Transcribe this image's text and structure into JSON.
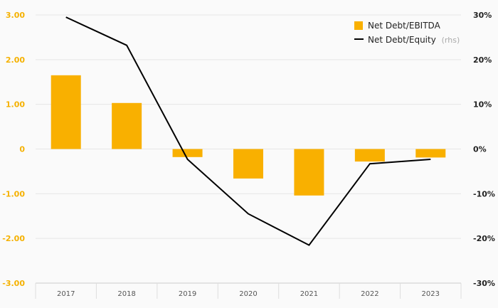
{
  "chart_data": {
    "type": "bar",
    "categories": [
      "2017",
      "2018",
      "2019",
      "2020",
      "2021",
      "2022",
      "2023"
    ],
    "series": [
      {
        "name": "Net Debt/EBITDA",
        "type": "bar",
        "axis": "left",
        "color": "#f9b000",
        "values": [
          1.65,
          1.03,
          -0.18,
          -0.66,
          -1.04,
          -0.28,
          -0.19
        ]
      },
      {
        "name": "Net Debt/Equity",
        "legend_suffix": "(rhs)",
        "type": "line",
        "axis": "right",
        "color": "#000000",
        "values": [
          29.5,
          23.2,
          -2.3,
          -14.5,
          -21.5,
          -3.3,
          -2.3
        ]
      }
    ],
    "left_axis": {
      "ylim": [
        -3,
        3
      ],
      "ticks": [
        3,
        2,
        1,
        0,
        -1,
        -2,
        -3
      ],
      "tick_labels": [
        "3.00",
        "2.00",
        "1.00",
        "0",
        "-1.00",
        "-2.00",
        "-3.00"
      ],
      "color": "#f5b100"
    },
    "right_axis": {
      "ylim": [
        -30,
        30
      ],
      "ticks": [
        30,
        20,
        10,
        0,
        -10,
        -20,
        -30
      ],
      "tick_labels": [
        "30%",
        "20%",
        "10%",
        "0%",
        "-10%",
        "-20%",
        "-30%"
      ],
      "color": "#222222"
    },
    "grid": true,
    "legend_position": "top-right"
  }
}
